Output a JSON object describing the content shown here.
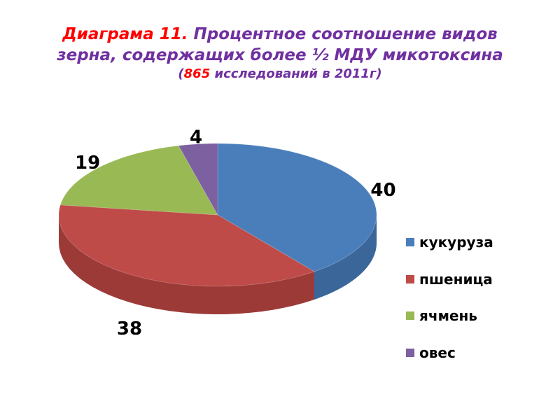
{
  "title": {
    "prefix": "Диаграма 11.",
    "line1": " Процентное соотношение видов",
    "line2": "зерна, содержащих более ½ МДУ микотоксина",
    "open": "(",
    "count": "865",
    "rest": " исследований в 2011г)"
  },
  "chart_data": {
    "type": "pie",
    "three_d": true,
    "start": "top",
    "direction": "clockwise",
    "legend": "right",
    "categories": [
      "кукуруза",
      "пшеница",
      "ячмень",
      "овес"
    ],
    "values": [
      40,
      38,
      19,
      4
    ],
    "colors": [
      "#4a7ebb",
      "#be4b48",
      "#98b954",
      "#7d60a0"
    ],
    "side_colors": [
      "#3b6699",
      "#9c3a38",
      "#7c9844",
      "#654c83"
    ]
  }
}
